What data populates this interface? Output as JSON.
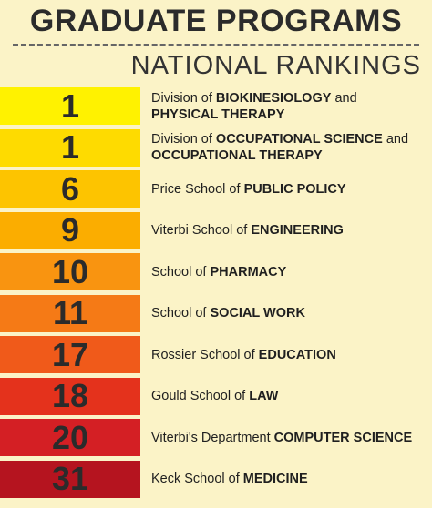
{
  "header": {
    "title": "GRADUATE PROGRAMS",
    "subtitle": "NATIONAL RANKINGS"
  },
  "rankings": [
    {
      "rank": "1",
      "lines": [
        [
          "Division of ",
          "BIOKINESIOLOGY",
          " and"
        ],
        [
          "",
          "PHYSICAL THERAPY",
          ""
        ]
      ],
      "color": "#fff200"
    },
    {
      "rank": "1",
      "lines": [
        [
          "Division of ",
          "OCCUPATIONAL SCIENCE",
          " and"
        ],
        [
          "",
          "OCCUPATIONAL THERAPY",
          ""
        ]
      ],
      "color": "#fedb00"
    },
    {
      "rank": "6",
      "lines": [
        [
          "Price School of ",
          "PUBLIC POLICY",
          ""
        ]
      ],
      "color": "#fdc400"
    },
    {
      "rank": "9",
      "lines": [
        [
          "Viterbi School of ",
          "ENGINEERING",
          ""
        ]
      ],
      "color": "#fbad00"
    },
    {
      "rank": "10",
      "lines": [
        [
          "School of ",
          "PHARMACY",
          ""
        ]
      ],
      "color": "#f99410"
    },
    {
      "rank": "11",
      "lines": [
        [
          "School of ",
          "SOCIAL WORK",
          ""
        ]
      ],
      "color": "#f57a16"
    },
    {
      "rank": "17",
      "lines": [
        [
          "Rossier School of ",
          "EDUCATION",
          ""
        ]
      ],
      "color": "#f05a1a"
    },
    {
      "rank": "18",
      "lines": [
        [
          "Gould School of ",
          "LAW",
          ""
        ]
      ],
      "color": "#e4321c"
    },
    {
      "rank": "20",
      "lines": [
        [
          "Viterbi's Department ",
          "COMPUTER SCIENCE",
          ""
        ]
      ],
      "color": "#d41f24"
    },
    {
      "rank": "31",
      "lines": [
        [
          "Keck School of ",
          "MEDICINE",
          ""
        ]
      ],
      "color": "#b5141f"
    }
  ]
}
